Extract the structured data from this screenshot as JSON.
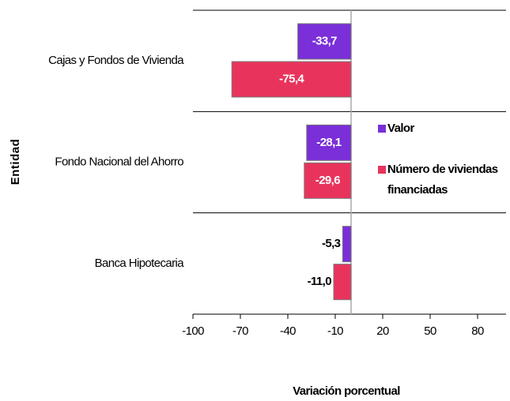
{
  "chart_data": {
    "type": "barh",
    "categories": [
      "Cajas y Fondos de Vivienda",
      "Fondo Nacional del Ahorro",
      "Banca Hipotecaria"
    ],
    "series": [
      {
        "name": "Valor",
        "color": "#7a2fd8",
        "values": [
          -33.7,
          -28.1,
          -5.3
        ],
        "value_labels": [
          "-33,7",
          "-28,1",
          "-5,3"
        ]
      },
      {
        "name": "Número de viviendas financiadas",
        "color": "#e8345c",
        "values": [
          -75.4,
          -29.6,
          -11.0
        ],
        "value_labels": [
          "-75,4",
          "-29,6",
          "-11,0"
        ]
      }
    ],
    "xlim": [
      -100,
      98
    ],
    "xticks": [
      -100,
      -70,
      -40,
      -10,
      20,
      50,
      80
    ],
    "xlabel": "Variación porcentual",
    "ylabel": "Entidad"
  }
}
